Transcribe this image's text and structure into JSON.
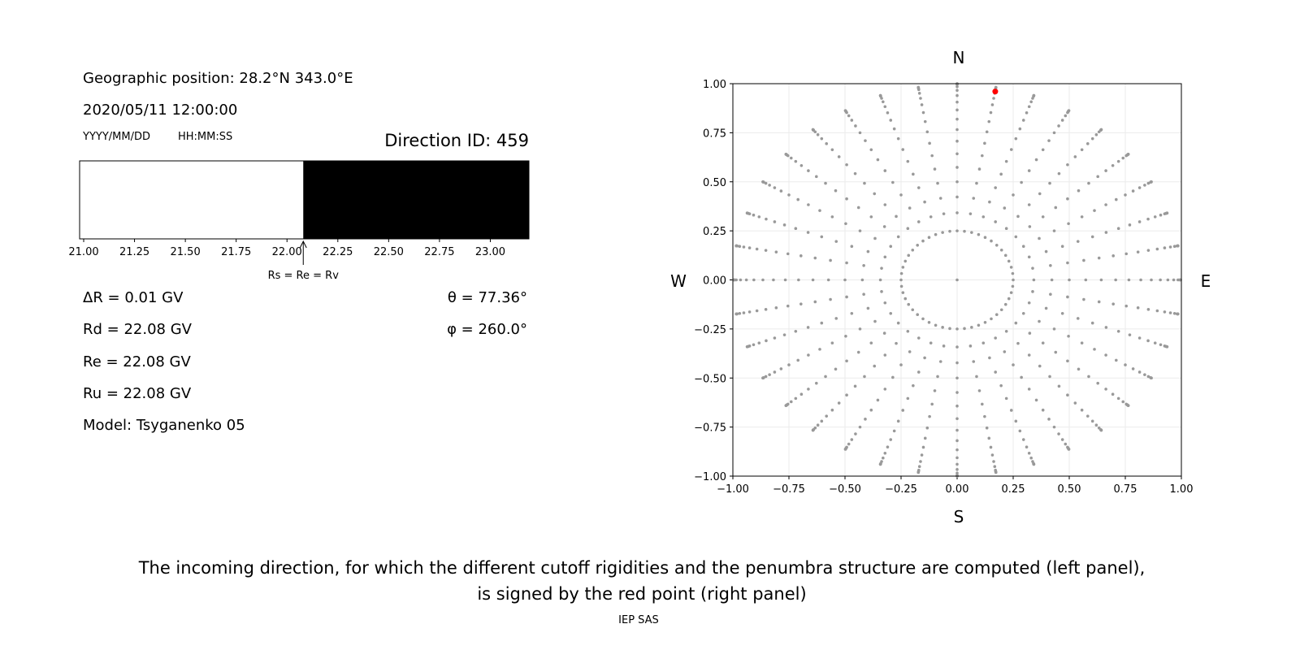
{
  "info": {
    "position": "Geographic position: 28.2°N 343.0°E",
    "datetime": "2020/05/11 12:00:00",
    "date_format": "YYYY/MM/DD",
    "time_format": "HH:MM:SS",
    "direction_id": "Direction ID: 459",
    "delta_r": "ΔR = 0.01 GV",
    "rd": "Rd = 22.08 GV",
    "re": "Re = 22.08 GV",
    "ru": "Ru = 22.08 GV",
    "model": "Model: Tsyganenko 05",
    "theta": "θ = 77.36°",
    "phi": "φ = 260.0°"
  },
  "caption": {
    "line1": "The incoming direction, for which the different cutoff rigidities and the penumbra structure are computed (left panel),",
    "line2": "is signed by the red point (right panel)",
    "credit": "IEP SAS"
  },
  "chart_data": [
    {
      "type": "bar",
      "xlim": [
        20.98,
        23.19
      ],
      "xticks": [
        "21.00",
        "21.25",
        "21.50",
        "21.75",
        "22.00",
        "22.25",
        "22.50",
        "22.75",
        "23.00"
      ],
      "segments": [
        {
          "from": 20.98,
          "to": 22.08,
          "color": "#ffffff"
        },
        {
          "from": 22.08,
          "to": 23.19,
          "color": "#000000"
        }
      ],
      "annotation": {
        "x": 22.08,
        "text": "Rs = Re = Rv"
      }
    },
    {
      "type": "scatter",
      "xlim": [
        -1,
        1
      ],
      "ylim": [
        -1,
        1
      ],
      "xticks": [
        "−1.00",
        "−0.75",
        "−0.50",
        "−0.25",
        "0.00",
        "0.25",
        "0.50",
        "0.75",
        "1.00"
      ],
      "yticks": [
        "−1.00",
        "−0.75",
        "−0.50",
        "−0.25",
        "0.00",
        "0.25",
        "0.50",
        "0.75",
        "1.00"
      ],
      "grid": true,
      "compass": {
        "n": "N",
        "s": "S",
        "e": "E",
        "w": "W"
      },
      "point_color": "#999999",
      "highlight": {
        "x": 0.17,
        "y": 0.96,
        "color": "#ff0000"
      }
    }
  ]
}
